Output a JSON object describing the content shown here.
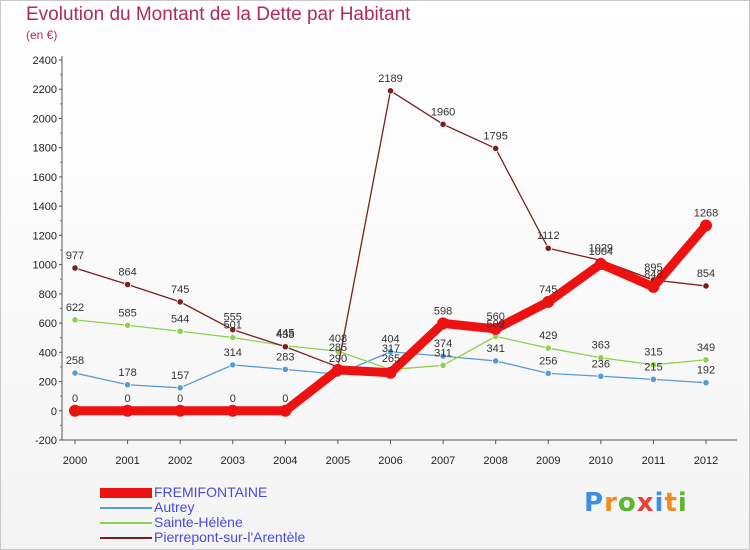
{
  "title": "Evolution du Montant de la Dette par Habitant",
  "unit": "(en €)",
  "logo": {
    "text": "Proxiti",
    "letter_colors": [
      "#3a8ee6",
      "#f28c1e",
      "#59b82f",
      "#e8413a",
      "#3a8ee6",
      "#f28c1e",
      "#59b82f"
    ]
  },
  "chart_data": {
    "type": "line",
    "x": [
      "2000",
      "2001",
      "2002",
      "2003",
      "2004",
      "2005",
      "2006",
      "2007",
      "2008",
      "2009",
      "2010",
      "2011",
      "2012"
    ],
    "ylim": [
      -200,
      2400
    ],
    "yticks": [
      -200,
      0,
      200,
      400,
      600,
      800,
      1000,
      1200,
      1400,
      1600,
      1800,
      2000,
      2200,
      2400
    ],
    "grid": false,
    "legend_position": "bottom-left",
    "series": [
      {
        "name": "FREMIFONTAINE",
        "color": "#ee1111",
        "values": [
          0,
          0,
          0,
          0,
          0,
          280,
          260,
          598,
          560,
          745,
          1004,
          848,
          1268
        ],
        "labels": [
          "0",
          "0",
          "0",
          "0",
          "0",
          "",
          "",
          "598",
          "560",
          "745",
          "1004",
          "848",
          "1268"
        ]
      },
      {
        "name": "Autrey",
        "color": "#5a9bd4",
        "values": [
          258,
          178,
          157,
          314,
          283,
          250,
          404,
          374,
          341,
          256,
          236,
          215,
          192
        ],
        "labels": [
          "258",
          "178",
          "157",
          "314",
          "283",
          "",
          "404",
          "374",
          "341",
          "256",
          "236",
          "215",
          "192"
        ]
      },
      {
        "name": "Sainte-Hélène",
        "color": "#8fd14f",
        "values": [
          622,
          585,
          544,
          501,
          445,
          408,
          282,
          311,
          509,
          429,
          363,
          315,
          349
        ],
        "labels": [
          "622",
          "585",
          "544",
          "501",
          "445",
          "408",
          "",
          "311",
          "509",
          "429",
          "363",
          "315",
          "349"
        ]
      },
      {
        "name": "Pierrepont-sur-l'Arentèle",
        "color": "#7a1f1f",
        "values": [
          977,
          864,
          745,
          555,
          438,
          300,
          2189,
          1960,
          1795,
          1112,
          1029,
          895,
          854
        ],
        "labels": [
          "977",
          "864",
          "745",
          "555",
          "438",
          "",
          "2189",
          "1960",
          "1795",
          "1112",
          "1029",
          "895",
          "854"
        ]
      }
    ],
    "extra_labels": [
      "285",
      "290",
      "317",
      "265"
    ]
  }
}
